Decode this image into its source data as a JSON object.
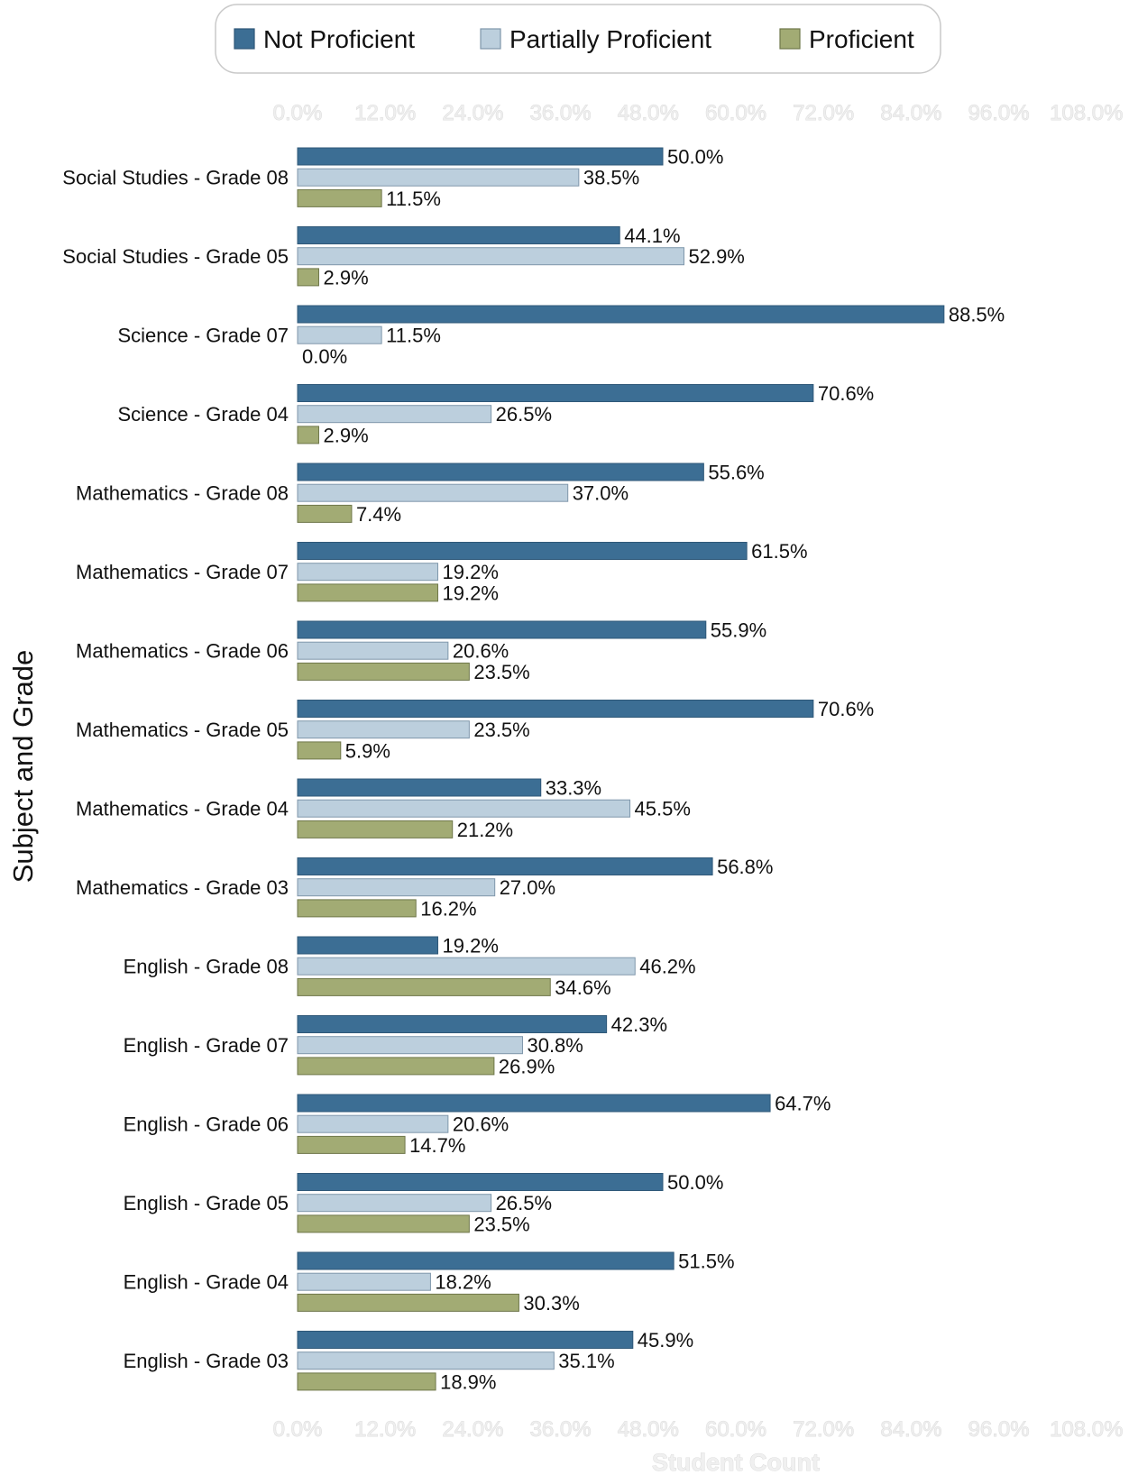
{
  "chart_data": {
    "type": "bar",
    "orientation": "horizontal",
    "xlabel": "Student Count",
    "ylabel": "Subject and Grade",
    "xlim": [
      0,
      108
    ],
    "x_ticks": [
      "0.0%",
      "12.0%",
      "24.0%",
      "36.0%",
      "48.0%",
      "60.0%",
      "72.0%",
      "84.0%",
      "96.0%",
      "108.0%"
    ],
    "grid": false,
    "legend_position": "top-center",
    "categories": [
      "Social Studies - Grade 08",
      "Social Studies - Grade 05",
      "Science - Grade 07",
      "Science - Grade 04",
      "Mathematics - Grade 08",
      "Mathematics - Grade 07",
      "Mathematics - Grade 06",
      "Mathematics - Grade 05",
      "Mathematics - Grade 04",
      "Mathematics - Grade 03",
      "English - Grade 08",
      "English - Grade 07",
      "English - Grade 06",
      "English - Grade 05",
      "English - Grade 04",
      "English - Grade 03"
    ],
    "series": [
      {
        "name": "Not Proficient",
        "color": "#3c6e94",
        "border": "#2f5878",
        "values": [
          50.0,
          44.1,
          88.5,
          70.6,
          55.6,
          61.5,
          55.9,
          70.6,
          33.3,
          56.8,
          19.2,
          42.3,
          64.7,
          50.0,
          51.5,
          45.9
        ],
        "labels": [
          "50.0%",
          "44.1%",
          "88.5%",
          "70.6%",
          "55.6%",
          "61.5%",
          "55.9%",
          "70.6%",
          "33.3%",
          "56.8%",
          "19.2%",
          "42.3%",
          "64.7%",
          "50.0%",
          "51.5%",
          "45.9%"
        ]
      },
      {
        "name": "Partially Proficient",
        "color": "#bccfdd",
        "border": "#7f97ab",
        "values": [
          38.5,
          52.9,
          11.5,
          26.5,
          37.0,
          19.2,
          20.6,
          23.5,
          45.5,
          27.0,
          46.2,
          30.8,
          20.6,
          26.5,
          18.2,
          35.1
        ],
        "labels": [
          "38.5%",
          "52.9%",
          "11.5%",
          "26.5%",
          "37.0%",
          "19.2%",
          "20.6%",
          "23.5%",
          "45.5%",
          "27.0%",
          "46.2%",
          "30.8%",
          "20.6%",
          "26.5%",
          "18.2%",
          "35.1%"
        ]
      },
      {
        "name": "Proficient",
        "color": "#a2ab74",
        "border": "#6f774a",
        "values": [
          11.5,
          2.9,
          0.0,
          2.9,
          7.4,
          19.2,
          23.5,
          5.9,
          21.2,
          16.2,
          34.6,
          26.9,
          14.7,
          23.5,
          30.3,
          18.9
        ],
        "labels": [
          "11.5%",
          "2.9%",
          "0.0%",
          "2.9%",
          "7.4%",
          "19.2%",
          "23.5%",
          "5.9%",
          "21.2%",
          "16.2%",
          "34.6%",
          "26.9%",
          "14.7%",
          "23.5%",
          "30.3%",
          "18.9%"
        ]
      }
    ]
  }
}
